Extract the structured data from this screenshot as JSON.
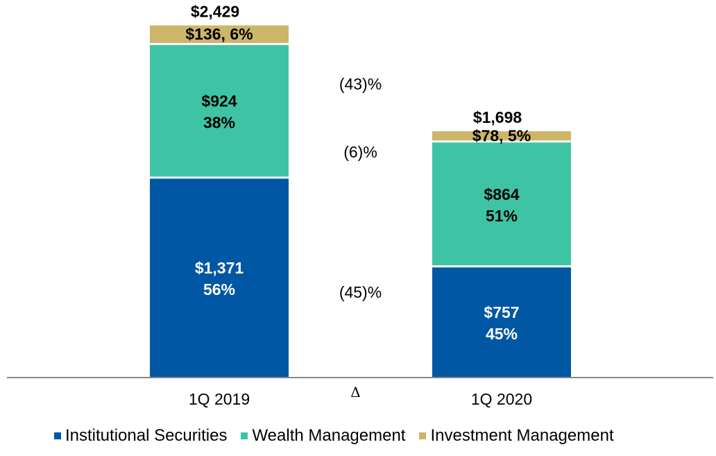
{
  "chart_data": {
    "type": "bar",
    "stacked": true,
    "categories": [
      "1Q 2019",
      "1Q 2020"
    ],
    "series": [
      {
        "name": "Institutional Securities",
        "color": "#0057A4",
        "values": [
          1371,
          757
        ],
        "labels": [
          "$1,371",
          "$757"
        ],
        "shares": [
          "56%",
          "45%"
        ]
      },
      {
        "name": "Wealth Management",
        "color": "#3EC4A4",
        "values": [
          924,
          864
        ],
        "labels": [
          "$924",
          "$864"
        ],
        "shares": [
          "38%",
          "51%"
        ]
      },
      {
        "name": "Investment Management",
        "color": "#CDB56A",
        "values": [
          136,
          78
        ],
        "labels": [
          "$136, 6%",
          "$78, 5%"
        ]
      }
    ],
    "totals": [
      "$2,429",
      "$1,698"
    ],
    "total_values": [
      2429,
      1698
    ],
    "deltas": [
      {
        "series": "Investment Management",
        "label": "(43)%"
      },
      {
        "series": "Wealth Management",
        "label": "(6)%"
      },
      {
        "series": "Institutional Securities",
        "label": "(45)%"
      }
    ],
    "delta_symbol": "Δ",
    "ylim": [
      0,
      2429
    ],
    "legend_position": "bottom",
    "grid": false
  }
}
